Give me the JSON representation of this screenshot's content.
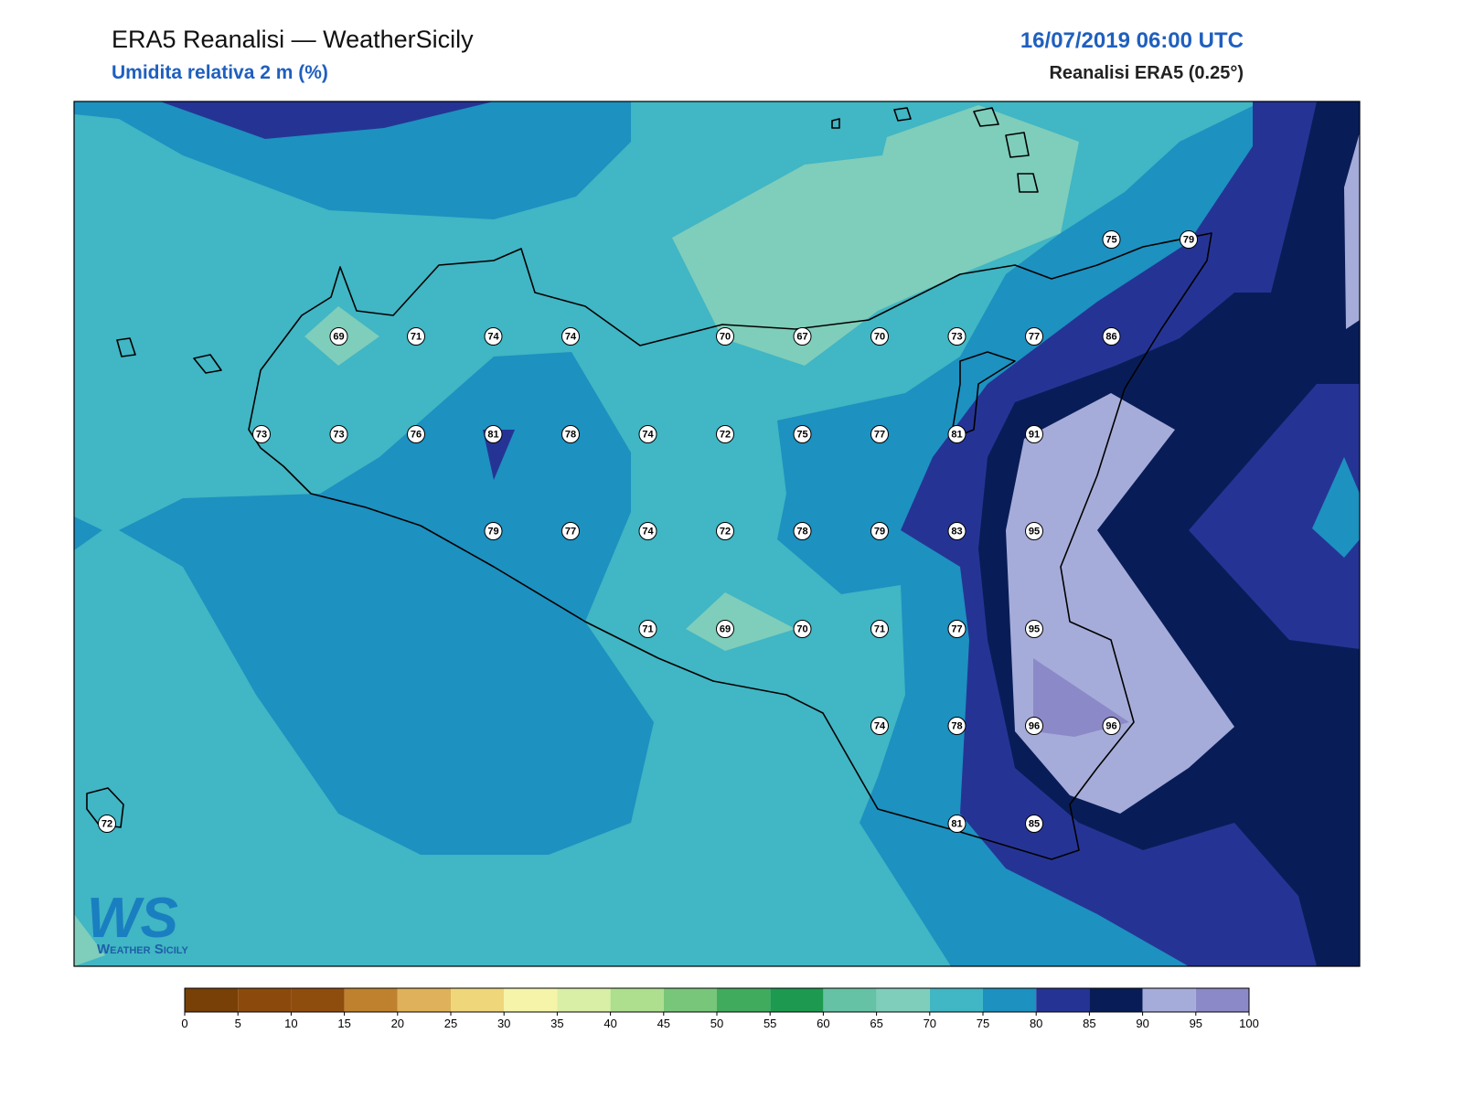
{
  "header": {
    "title": "ERA5 Reanalisi — WeatherSicily",
    "subtitle": "Umidita relativa 2 m (%)",
    "date": "16/07/2019 06:00 UTC",
    "source": "Reanalisi ERA5 (0.25°)"
  },
  "logo": {
    "mark": "WS",
    "text": "Weather Sicily"
  },
  "stations": {
    "values": [
      75,
      79,
      69,
      71,
      74,
      74,
      70,
      67,
      70,
      73,
      77,
      86,
      73,
      73,
      76,
      81,
      78,
      74,
      72,
      75,
      77,
      81,
      91,
      79,
      77,
      74,
      72,
      78,
      79,
      83,
      95,
      71,
      69,
      70,
      71,
      77,
      95,
      74,
      78,
      96,
      96,
      72,
      81,
      85
    ]
  },
  "colorbar": {
    "ticks": [
      0,
      5,
      10,
      15,
      20,
      25,
      30,
      35,
      40,
      45,
      50,
      55,
      60,
      65,
      70,
      75,
      80,
      85,
      90,
      95,
      100
    ],
    "colors": [
      "#784006",
      "#8b4a0b",
      "#8f4d0d",
      "#bf812d",
      "#dfb15a",
      "#f0d67b",
      "#f6f4a8",
      "#d9efa6",
      "#addf8f",
      "#78c679",
      "#41ab5d",
      "#1d9a50",
      "#66c2a4",
      "#7fcdbb",
      "#41b6c4",
      "#1d91c0",
      "#253494",
      "#081d58",
      "#a6acd9",
      "#8c89c8"
    ]
  }
}
